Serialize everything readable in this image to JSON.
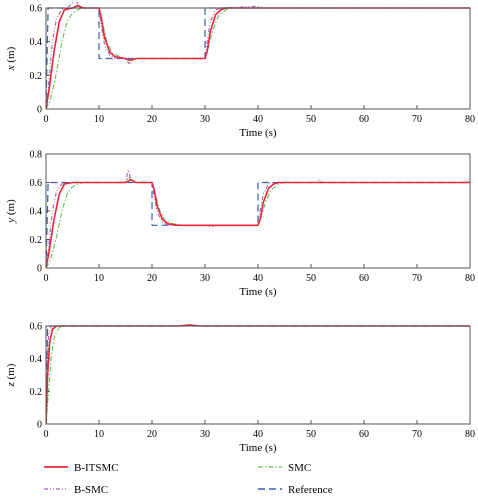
{
  "chart_data": [
    {
      "type": "line",
      "xlabel": "Time (s)",
      "ylabel_var": "x",
      "ylabel_unit": " (m)",
      "xlim": [
        0,
        80
      ],
      "ylim": [
        0,
        0.6
      ],
      "xticks": [
        "0",
        "10",
        "20",
        "30",
        "40",
        "50",
        "60",
        "70",
        "80"
      ],
      "yticks": [
        "0",
        "0.2",
        "0.4",
        "0.6"
      ],
      "grid": false,
      "series": [
        {
          "name": "Reference",
          "points": [
            [
              0,
              0
            ],
            [
              0.4,
              0.6
            ],
            [
              10,
              0.6
            ],
            [
              10,
              0.3
            ],
            [
              30,
              0.3
            ],
            [
              30,
              0.6
            ],
            [
              80,
              0.6
            ]
          ]
        },
        {
          "name": "B-ITSMC",
          "points": [
            [
              0,
              0
            ],
            [
              0.6,
              0.12
            ],
            [
              1.5,
              0.34
            ],
            [
              2.5,
              0.52
            ],
            [
              3.5,
              0.59
            ],
            [
              5,
              0.6
            ],
            [
              6,
              0.615
            ],
            [
              7,
              0.6
            ],
            [
              10,
              0.6
            ],
            [
              10.4,
              0.55
            ],
            [
              11,
              0.43
            ],
            [
              12,
              0.34
            ],
            [
              13,
              0.31
            ],
            [
              15,
              0.3
            ],
            [
              16,
              0.29
            ],
            [
              17,
              0.3
            ],
            [
              30,
              0.3
            ],
            [
              30.4,
              0.34
            ],
            [
              31,
              0.46
            ],
            [
              32,
              0.56
            ],
            [
              33,
              0.59
            ],
            [
              34,
              0.6
            ],
            [
              80,
              0.6
            ]
          ]
        },
        {
          "name": "SMC",
          "points": [
            [
              0,
              0
            ],
            [
              0.8,
              0.05
            ],
            [
              2,
              0.22
            ],
            [
              3,
              0.4
            ],
            [
              4,
              0.52
            ],
            [
              5,
              0.57
            ],
            [
              6,
              0.59
            ],
            [
              7,
              0.6
            ],
            [
              10,
              0.6
            ],
            [
              10.6,
              0.52
            ],
            [
              11.5,
              0.4
            ],
            [
              12.5,
              0.33
            ],
            [
              14,
              0.31
            ],
            [
              15.5,
              0.29
            ],
            [
              16,
              0.27
            ],
            [
              16.5,
              0.3
            ],
            [
              30,
              0.3
            ],
            [
              30.6,
              0.36
            ],
            [
              31.5,
              0.47
            ],
            [
              32.5,
              0.55
            ],
            [
              34,
              0.59
            ],
            [
              35,
              0.6
            ],
            [
              80,
              0.6
            ]
          ]
        },
        {
          "name": "B-SMC",
          "points": [
            [
              0,
              0
            ],
            [
              0.5,
              0.15
            ],
            [
              1.2,
              0.4
            ],
            [
              2,
              0.54
            ],
            [
              3,
              0.59
            ],
            [
              4,
              0.6
            ],
            [
              5,
              0.63
            ],
            [
              5.6,
              0.65
            ],
            [
              6.2,
              0.61
            ],
            [
              7,
              0.6
            ],
            [
              10,
              0.6
            ],
            [
              10.3,
              0.52
            ],
            [
              11,
              0.39
            ],
            [
              12,
              0.32
            ],
            [
              13,
              0.3
            ],
            [
              15,
              0.3
            ],
            [
              15.6,
              0.27
            ],
            [
              16.2,
              0.3
            ],
            [
              30,
              0.3
            ],
            [
              30.3,
              0.38
            ],
            [
              31,
              0.52
            ],
            [
              32,
              0.59
            ],
            [
              33,
              0.6
            ],
            [
              40,
              0.61
            ],
            [
              41,
              0.6
            ],
            [
              80,
              0.6
            ]
          ]
        }
      ]
    },
    {
      "type": "line",
      "xlabel": "Time (s)",
      "ylabel_var": "y",
      "ylabel_unit": " (m)",
      "xlim": [
        0,
        80
      ],
      "ylim": [
        0,
        0.8
      ],
      "xticks": [
        "0",
        "10",
        "20",
        "30",
        "40",
        "50",
        "60",
        "70",
        "80"
      ],
      "yticks": [
        "0",
        "0.2",
        "0.4",
        "0.6",
        "0.8"
      ],
      "grid": false,
      "series": [
        {
          "name": "Reference",
          "points": [
            [
              0,
              0
            ],
            [
              0.4,
              0.6
            ],
            [
              20,
              0.6
            ],
            [
              20,
              0.3
            ],
            [
              40,
              0.3
            ],
            [
              40,
              0.6
            ],
            [
              80,
              0.6
            ]
          ]
        },
        {
          "name": "B-ITSMC",
          "points": [
            [
              0,
              0
            ],
            [
              0.6,
              0.12
            ],
            [
              1.5,
              0.34
            ],
            [
              2.5,
              0.52
            ],
            [
              3.5,
              0.59
            ],
            [
              5,
              0.6
            ],
            [
              15,
              0.6
            ],
            [
              16,
              0.62
            ],
            [
              17,
              0.6
            ],
            [
              20,
              0.6
            ],
            [
              20.4,
              0.55
            ],
            [
              21,
              0.43
            ],
            [
              22,
              0.34
            ],
            [
              23,
              0.31
            ],
            [
              25,
              0.3
            ],
            [
              40,
              0.3
            ],
            [
              40.4,
              0.34
            ],
            [
              41,
              0.46
            ],
            [
              42,
              0.56
            ],
            [
              43,
              0.59
            ],
            [
              44,
              0.6
            ],
            [
              80,
              0.6
            ]
          ]
        },
        {
          "name": "SMC",
          "points": [
            [
              0,
              0
            ],
            [
              0.8,
              0.05
            ],
            [
              2,
              0.22
            ],
            [
              3,
              0.4
            ],
            [
              4,
              0.52
            ],
            [
              5,
              0.57
            ],
            [
              6,
              0.59
            ],
            [
              7,
              0.6
            ],
            [
              15,
              0.6
            ],
            [
              15.6,
              0.64
            ],
            [
              16.2,
              0.6
            ],
            [
              20,
              0.6
            ],
            [
              20.6,
              0.52
            ],
            [
              21.5,
              0.4
            ],
            [
              22.5,
              0.33
            ],
            [
              24,
              0.31
            ],
            [
              26,
              0.3
            ],
            [
              40,
              0.3
            ],
            [
              40.6,
              0.36
            ],
            [
              41.5,
              0.47
            ],
            [
              42.5,
              0.55
            ],
            [
              44,
              0.59
            ],
            [
              45,
              0.6
            ],
            [
              51,
              0.6
            ],
            [
              51.6,
              0.62
            ],
            [
              52.2,
              0.6
            ],
            [
              80,
              0.6
            ]
          ]
        },
        {
          "name": "B-SMC",
          "points": [
            [
              0,
              0
            ],
            [
              0.5,
              0.15
            ],
            [
              1.2,
              0.4
            ],
            [
              2,
              0.54
            ],
            [
              3,
              0.59
            ],
            [
              4,
              0.6
            ],
            [
              15,
              0.6
            ],
            [
              15.5,
              0.69
            ],
            [
              16,
              0.62
            ],
            [
              16.6,
              0.6
            ],
            [
              20,
              0.6
            ],
            [
              20.3,
              0.52
            ],
            [
              21,
              0.39
            ],
            [
              22,
              0.32
            ],
            [
              23,
              0.3
            ],
            [
              30,
              0.3
            ],
            [
              31,
              0.29
            ],
            [
              32,
              0.3
            ],
            [
              40,
              0.3
            ],
            [
              40.3,
              0.38
            ],
            [
              41,
              0.52
            ],
            [
              42,
              0.59
            ],
            [
              43,
              0.6
            ],
            [
              80,
              0.6
            ]
          ]
        }
      ]
    },
    {
      "type": "line",
      "xlabel": "Time (s)",
      "ylabel_var": "z",
      "ylabel_unit": " (m)",
      "xlim": [
        0,
        80
      ],
      "ylim": [
        0,
        0.6
      ],
      "xticks": [
        "0",
        "10",
        "20",
        "30",
        "40",
        "50",
        "60",
        "70",
        "80"
      ],
      "yticks": [
        "0",
        "0.2",
        "0.4",
        "0.6"
      ],
      "grid": false,
      "series": [
        {
          "name": "Reference",
          "points": [
            [
              0,
              0
            ],
            [
              0.3,
              0.6
            ],
            [
              80,
              0.6
            ]
          ]
        },
        {
          "name": "B-ITSMC",
          "points": [
            [
              0,
              0
            ],
            [
              0.3,
              0.3
            ],
            [
              0.7,
              0.5
            ],
            [
              1.2,
              0.58
            ],
            [
              2,
              0.6
            ],
            [
              25,
              0.6
            ],
            [
              27,
              0.607
            ],
            [
              29,
              0.6
            ],
            [
              80,
              0.6
            ]
          ]
        },
        {
          "name": "SMC",
          "points": [
            [
              0,
              0
            ],
            [
              0.5,
              0.2
            ],
            [
              1,
              0.42
            ],
            [
              1.6,
              0.54
            ],
            [
              2.5,
              0.59
            ],
            [
              3.5,
              0.6
            ],
            [
              80,
              0.6
            ]
          ]
        },
        {
          "name": "B-SMC",
          "points": [
            [
              0,
              0
            ],
            [
              0.2,
              0.35
            ],
            [
              0.5,
              0.55
            ],
            [
              1,
              0.6
            ],
            [
              80,
              0.6
            ]
          ]
        }
      ]
    }
  ],
  "legend": {
    "placement": "bottom",
    "entries": [
      {
        "name": "B-ITSMC",
        "color": "#e8283a",
        "style": "solid"
      },
      {
        "name": "SMC",
        "color": "#6cbf56",
        "style": "dashdot"
      },
      {
        "name": "B-SMC",
        "color": "#a25fc2",
        "style": "dashdotdot"
      },
      {
        "name": "Reference",
        "color": "#3d5ea8",
        "style": "dashed"
      }
    ]
  },
  "styles": {
    "B-ITSMC": {
      "color": "#e8283a",
      "dash": "",
      "width": 1.6
    },
    "SMC": {
      "color": "#6cbf56",
      "dash": "5,2,1.5,2",
      "width": 1.1
    },
    "B-SMC": {
      "color": "#a25fc2",
      "dash": "4,2,1,2,1,2",
      "width": 1.1
    },
    "Reference": {
      "color": "#3d5ea8",
      "dash": "7,4",
      "width": 1.2
    }
  }
}
